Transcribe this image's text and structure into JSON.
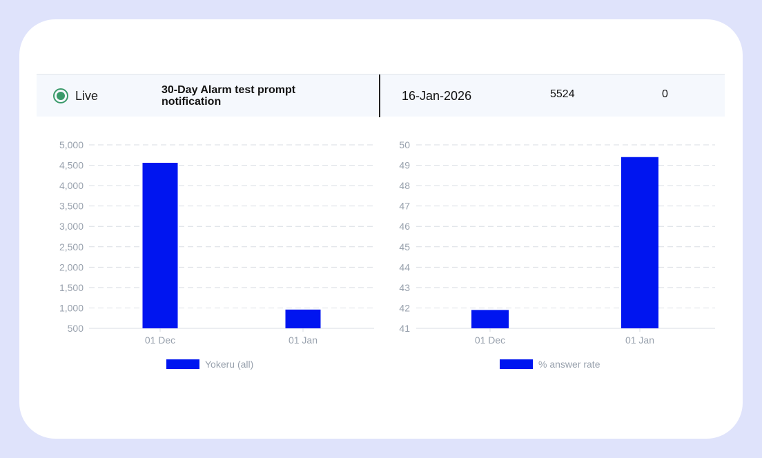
{
  "row": {
    "status_label": "Live",
    "title": "30-Day Alarm test prompt notification",
    "date": "16-Jan-2026",
    "count": "5524",
    "second_value": "0"
  },
  "colors": {
    "bar": "#0015f0",
    "grid": "#d9dde3",
    "status": "#3a9a6a"
  },
  "chart_data": [
    {
      "type": "bar",
      "categories": [
        "01 Dec",
        "01 Jan"
      ],
      "series": [
        {
          "name": "Yokeru (all)",
          "values": [
            4560,
            960
          ]
        }
      ],
      "ylim": [
        500,
        5000
      ],
      "yticks": [
        "500",
        "1,000",
        "1,500",
        "2,000",
        "2,500",
        "3,000",
        "3,500",
        "4,000",
        "4,500",
        "5,000"
      ],
      "ytick_values": [
        500,
        1000,
        1500,
        2000,
        2500,
        3000,
        3500,
        4000,
        4500,
        5000
      ],
      "grid": true,
      "legend": "bottom"
    },
    {
      "type": "bar",
      "categories": [
        "01 Dec",
        "01 Jan"
      ],
      "series": [
        {
          "name": "% answer rate",
          "values": [
            41.9,
            49.4
          ]
        }
      ],
      "ylim": [
        41,
        50
      ],
      "yticks": [
        "41",
        "42",
        "43",
        "44",
        "45",
        "46",
        "47",
        "48",
        "49",
        "50"
      ],
      "ytick_values": [
        41,
        42,
        43,
        44,
        45,
        46,
        47,
        48,
        49,
        50
      ],
      "grid": true,
      "legend": "bottom"
    }
  ]
}
